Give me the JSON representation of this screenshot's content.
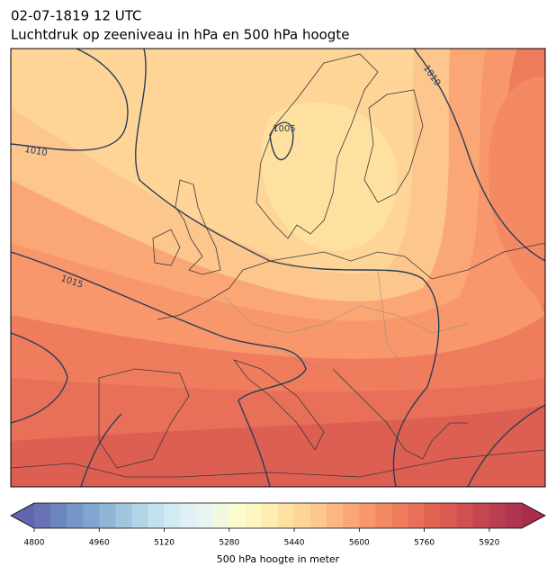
{
  "map": {
    "title": "02-07-1819 12 UTC",
    "subtitle": "Luchtdruk op zeeniveau in hPa en 500 hPa hoogte",
    "isobar_labels": [
      1010,
      1005,
      1015,
      1010
    ],
    "colorbar": {
      "label": "500 hPa hoogte in meter",
      "range": [
        4800,
        6000
      ],
      "ticks": [
        4800,
        4960,
        5120,
        5280,
        5440,
        5600,
        5760,
        5920
      ],
      "under_color": "#5f66ae",
      "over_color": "#a82e4c",
      "colors": [
        "#6a72b6",
        "#6d85bf",
        "#7596c7",
        "#80a6cf",
        "#8fb6d7",
        "#a0c5df",
        "#b1d4e6",
        "#c2e0ed",
        "#d2eaf2",
        "#dff1f5",
        "#e9f5f0",
        "#f2f8e0",
        "#fbfbcf",
        "#fef6c0",
        "#feecb0",
        "#fee1a1",
        "#fed497",
        "#fdc68c",
        "#fcb680",
        "#fba675",
        "#f8976b",
        "#f48a64",
        "#ef7d5d",
        "#e87058",
        "#e16453",
        "#d95a50",
        "#cf504f",
        "#c5464f",
        "#bb3d50",
        "#b0354f"
      ]
    }
  }
}
